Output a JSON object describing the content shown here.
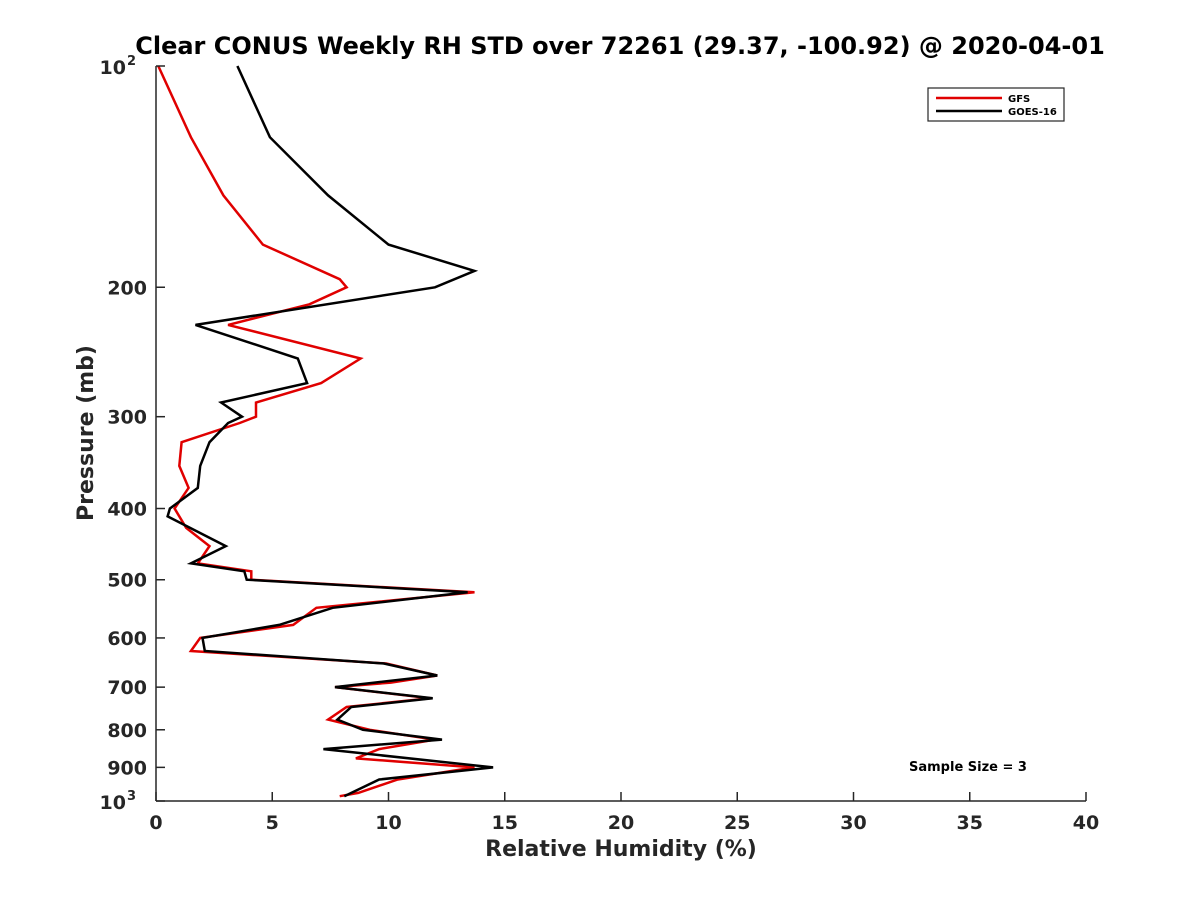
{
  "chart_data": {
    "type": "line",
    "title": "Clear CONUS Weekly RH STD over 72261 (29.37, -100.92) @ 2020-04-01",
    "xlabel": "Relative Humidity (%)",
    "ylabel": "Pressure (mb)",
    "xlim": [
      0,
      40
    ],
    "ylim": [
      100,
      1000
    ],
    "y_scale": "log",
    "y_reversed": true,
    "x_ticks": [
      {
        "value": 0,
        "label": "0"
      },
      {
        "value": 5,
        "label": "5"
      },
      {
        "value": 10,
        "label": "10"
      },
      {
        "value": 15,
        "label": "15"
      },
      {
        "value": 20,
        "label": "20"
      },
      {
        "value": 25,
        "label": "25"
      },
      {
        "value": 30,
        "label": "30"
      },
      {
        "value": 35,
        "label": "35"
      },
      {
        "value": 40,
        "label": "40"
      }
    ],
    "y_ticks": [
      {
        "value": 100,
        "base": "10",
        "sup": "2"
      },
      {
        "value": 200,
        "base": "200",
        "sup": ""
      },
      {
        "value": 300,
        "base": "300",
        "sup": ""
      },
      {
        "value": 400,
        "base": "400",
        "sup": ""
      },
      {
        "value": 500,
        "base": "500",
        "sup": ""
      },
      {
        "value": 600,
        "base": "600",
        "sup": ""
      },
      {
        "value": 700,
        "base": "700",
        "sup": ""
      },
      {
        "value": 800,
        "base": "800",
        "sup": ""
      },
      {
        "value": 900,
        "base": "900",
        "sup": ""
      },
      {
        "value": 1000,
        "base": "10",
        "sup": "3"
      }
    ],
    "grid": false,
    "legend_position": "top-right",
    "annotation": "Sample Size = 3",
    "series": [
      {
        "name": "GFS",
        "color": "#e00000",
        "points": [
          [
            0.1,
            100
          ],
          [
            1.5,
            125
          ],
          [
            2.9,
            150
          ],
          [
            4.6,
            175
          ],
          [
            7.9,
            195
          ],
          [
            8.2,
            200
          ],
          [
            6.6,
            211
          ],
          [
            3.1,
            225
          ],
          [
            8.8,
            250
          ],
          [
            7.1,
            270
          ],
          [
            4.3,
            287
          ],
          [
            4.3,
            300
          ],
          [
            3.6,
            306
          ],
          [
            1.1,
            325
          ],
          [
            1.0,
            350
          ],
          [
            1.4,
            375
          ],
          [
            0.8,
            400
          ],
          [
            1.3,
            425
          ],
          [
            2.3,
            450
          ],
          [
            1.8,
            475
          ],
          [
            4.1,
            487
          ],
          [
            4.1,
            500
          ],
          [
            13.7,
            520
          ],
          [
            6.9,
            546
          ],
          [
            5.9,
            576
          ],
          [
            1.9,
            600
          ],
          [
            1.5,
            625
          ],
          [
            9.9,
            650
          ],
          [
            12.1,
            675
          ],
          [
            10.1,
            690
          ],
          [
            7.7,
            700
          ],
          [
            11.8,
            725
          ],
          [
            8.2,
            745
          ],
          [
            7.4,
            775
          ],
          [
            9.2,
            800
          ],
          [
            12.0,
            825
          ],
          [
            9.6,
            850
          ],
          [
            8.6,
            875
          ],
          [
            13.7,
            900
          ],
          [
            10.4,
            935
          ],
          [
            8.7,
            975
          ],
          [
            7.9,
            985
          ]
        ]
      },
      {
        "name": "GOES-16",
        "color": "#000000",
        "points": [
          [
            3.5,
            100
          ],
          [
            4.9,
            125
          ],
          [
            7.4,
            150
          ],
          [
            10.0,
            175
          ],
          [
            13.7,
            190
          ],
          [
            12.0,
            200
          ],
          [
            1.7,
            225
          ],
          [
            6.1,
            250
          ],
          [
            6.5,
            270
          ],
          [
            2.8,
            287
          ],
          [
            3.7,
            300
          ],
          [
            3.1,
            306
          ],
          [
            2.3,
            325
          ],
          [
            1.9,
            350
          ],
          [
            1.8,
            375
          ],
          [
            0.6,
            400
          ],
          [
            0.5,
            410
          ],
          [
            3.0,
            450
          ],
          [
            1.5,
            475
          ],
          [
            3.8,
            487
          ],
          [
            3.9,
            500
          ],
          [
            13.4,
            520
          ],
          [
            7.6,
            546
          ],
          [
            5.3,
            576
          ],
          [
            2.0,
            600
          ],
          [
            2.1,
            625
          ],
          [
            9.8,
            650
          ],
          [
            12.1,
            675
          ],
          [
            9.4,
            690
          ],
          [
            7.7,
            700
          ],
          [
            11.9,
            725
          ],
          [
            8.4,
            745
          ],
          [
            7.8,
            775
          ],
          [
            8.9,
            800
          ],
          [
            12.3,
            825
          ],
          [
            7.2,
            850
          ],
          [
            14.5,
            900
          ],
          [
            9.6,
            935
          ],
          [
            8.1,
            985
          ]
        ]
      }
    ]
  }
}
